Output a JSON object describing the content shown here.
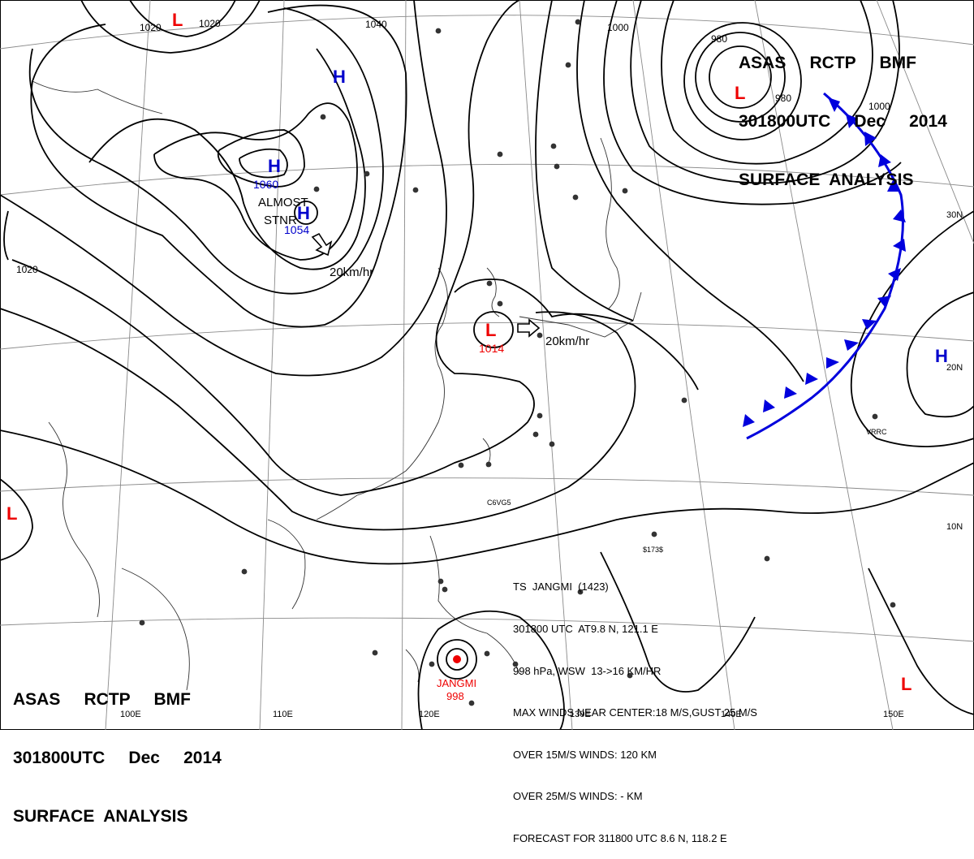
{
  "header": {
    "line1": "ASAS     RCTP     BMF",
    "line2": "301800UTC     Dec     2014",
    "line3": "SURFACE  ANALYSIS"
  },
  "storm_info": {
    "name": "TS  JANGMI  (1423)",
    "position": "301800 UTC  AT9.8 N, 121.1 E",
    "pressure_motion": "998 hPa, WSW  13->16 KM/HR",
    "max_winds": "MAX WINDS NEAR CENTER:18 M/S,GUST 25 M/S",
    "over15": "OVER 15M/S WINDS: 120 KM",
    "over25": "OVER 25M/S WINDS: - KM",
    "forecast": "FORECAST FOR 311800 UTC 8.6 N, 118.2 E"
  },
  "pressure_centers": [
    {
      "type": "H",
      "value": "1060",
      "color": "#0000cc"
    },
    {
      "type": "H",
      "value": "1054",
      "color": "#0000cc"
    },
    {
      "type": "H",
      "value": "",
      "color": "#0000cc"
    },
    {
      "type": "H",
      "value": "",
      "color": "#0000cc"
    },
    {
      "type": "L",
      "value": "1014",
      "color": "#ee0000"
    },
    {
      "type": "L",
      "value": "",
      "color": "#ee0000"
    },
    {
      "type": "L",
      "value": "",
      "color": "#ee0000"
    },
    {
      "type": "L",
      "value": "",
      "color": "#ee0000"
    },
    {
      "type": "L",
      "value": "",
      "color": "#ee0000"
    }
  ],
  "annotations": {
    "almost_stnr_1": "ALMOST",
    "almost_stnr_2": "STNR",
    "motion_high": "20km/hr",
    "motion_low": "20km/hr",
    "typhoon_name": "JANGMI",
    "typhoon_pressure": "998"
  },
  "isobar_labels": [
    "1020",
    "1020",
    "1040",
    "1020",
    "980",
    "1000",
    "1000",
    "980"
  ],
  "latitude_labels": [
    "30N",
    "20N",
    "10N"
  ],
  "longitude_labels": [
    "100E",
    "110E",
    "120E",
    "130E",
    "140E",
    "150E"
  ],
  "station_labels": [
    "C6VG5",
    "VRRC",
    "$173$"
  ],
  "colors": {
    "high": "#0000cc",
    "low": "#ee0000",
    "front": "#0000dd",
    "isobar": "#000000",
    "grid": "#888888"
  }
}
